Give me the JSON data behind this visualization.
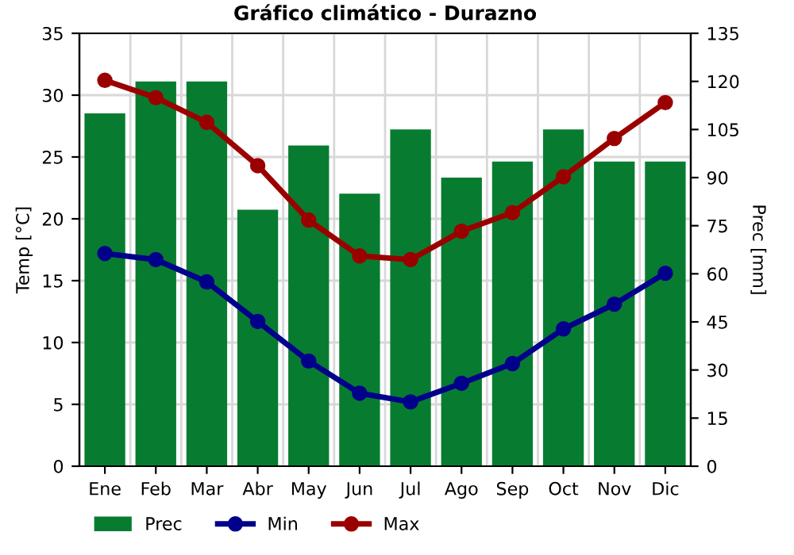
{
  "chart_data": {
    "type": "bar",
    "title": "Gráfico climático - Durazno",
    "ylabel": "Temp [°C]",
    "y2label": "Prec [mm]",
    "categories": [
      "Ene",
      "Feb",
      "Mar",
      "Abr",
      "May",
      "Jun",
      "Jul",
      "Ago",
      "Sep",
      "Oct",
      "Nov",
      "Dic"
    ],
    "series": [
      {
        "name": "Prec",
        "axis": "y2",
        "color": "#077c30",
        "values": [
          110,
          120,
          120,
          80,
          100,
          85,
          105,
          90,
          95,
          105,
          95,
          95
        ]
      },
      {
        "name": "Min",
        "type": "line",
        "axis": "y",
        "color": "#00008b",
        "values": [
          17.2,
          16.7,
          14.9,
          11.7,
          8.5,
          5.9,
          5.2,
          6.7,
          8.3,
          11.1,
          13.1,
          15.6
        ]
      },
      {
        "name": "Max",
        "type": "line",
        "axis": "y",
        "color": "#9b0000",
        "values": [
          31.2,
          29.8,
          27.8,
          24.3,
          19.9,
          17.0,
          16.7,
          19.0,
          20.5,
          23.4,
          26.5,
          29.4
        ]
      }
    ],
    "ylim": [
      0,
      35
    ],
    "yticks": [
      0,
      5,
      10,
      15,
      20,
      25,
      30,
      35
    ],
    "y2lim": [
      0,
      135
    ],
    "y2ticks": [
      0,
      15,
      30,
      45,
      60,
      75,
      90,
      105,
      120,
      135
    ],
    "grid": true,
    "legend": "bottom",
    "marker": "circle"
  }
}
